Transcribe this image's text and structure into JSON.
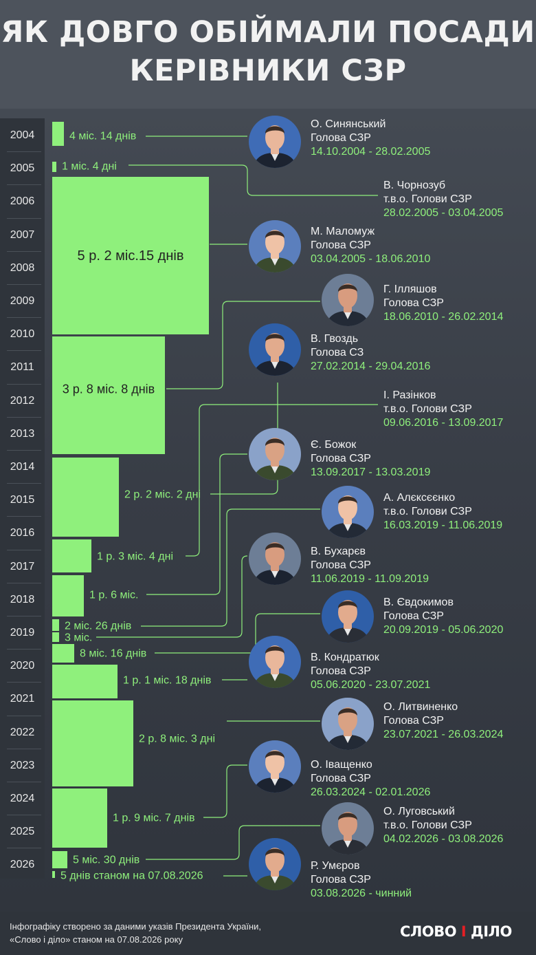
{
  "title": {
    "line1": "ЯК ДОВГО ОБІЙМАЛИ ПОСАДИ",
    "line2": "КЕРІВНИКИ СЗР"
  },
  "years": [
    "2004",
    "2005",
    "2006",
    "2007",
    "2008",
    "2009",
    "2010",
    "2011",
    "2012",
    "2013",
    "2014",
    "2015",
    "2016",
    "2017",
    "2018",
    "2019",
    "2020",
    "2021",
    "2022",
    "2023",
    "2024",
    "2025",
    "2026"
  ],
  "chart_data": {
    "type": "bar",
    "title": "ЯК ДОВГО ОБІЙМАЛИ ПОСАДИ КЕРІВНИКИ СЗР",
    "xlabel": "",
    "ylabel": "",
    "ylim": [
      "2004",
      "2026"
    ],
    "bars": [
      {
        "id": "synianskyi",
        "start": "2004-10-14",
        "end": "2005-02-28",
        "duration_days": 137,
        "label": "4 міс. 14 днів"
      },
      {
        "id": "chornozub",
        "start": "2005-02-28",
        "end": "2005-04-03",
        "duration_days": 34,
        "label": "1 міс. 4 дні"
      },
      {
        "id": "malomuzh",
        "start": "2005-04-03",
        "end": "2010-06-18",
        "duration_days": 1902,
        "label": "5 р. 2 міс.15 днів"
      },
      {
        "id": "illiashov",
        "start": "2010-06-18",
        "end": "2014-02-26",
        "duration_days": 1349,
        "label": "3 р. 8 міс. 8 днів"
      },
      {
        "id": "hvozd",
        "start": "2014-02-27",
        "end": "2016-04-29",
        "duration_days": 792,
        "label": "2 р. 2 міс. 2 дні"
      },
      {
        "id": "razinkov",
        "start": "2016-06-09",
        "end": "2017-09-13",
        "duration_days": 461,
        "label": "1 р. 3 міс. 4 дні"
      },
      {
        "id": "bozhok",
        "start": "2017-09-13",
        "end": "2019-03-13",
        "duration_days": 546,
        "label": "1 р. 6 міс."
      },
      {
        "id": "alieksieienko",
        "start": "2019-03-16",
        "end": "2019-06-11",
        "duration_days": 87,
        "label": "2 міс. 26 днів"
      },
      {
        "id": "bukhariev",
        "start": "2019-06-11",
        "end": "2019-09-11",
        "duration_days": 92,
        "label": "3 міс."
      },
      {
        "id": "yevdokymov",
        "start": "2019-09-20",
        "end": "2020-06-05",
        "duration_days": 259,
        "label": "8 міс. 16 днів"
      },
      {
        "id": "kondratiuk",
        "start": "2020-06-05",
        "end": "2021-07-23",
        "duration_days": 413,
        "label": "1 р. 1 міс. 18 днів"
      },
      {
        "id": "lytvynenko",
        "start": "2021-07-23",
        "end": "2024-03-26",
        "duration_days": 977,
        "label": "2 р. 8 міс. 3 дні"
      },
      {
        "id": "ivashchenko",
        "start": "2024-03-26",
        "end": "2026-01-02",
        "duration_days": 647,
        "label": "1 р. 9 міс. 7 днів"
      },
      {
        "id": "luhovskyi",
        "start": "2026-02-04",
        "end": "2026-08-03",
        "duration_days": 180,
        "label": "5 міс. 30 днів"
      },
      {
        "id": "umierov",
        "start": "2026-08-03",
        "end": "2026-08-07",
        "duration_days": 5,
        "label": "5 днів станом на 07.08.2026"
      }
    ]
  },
  "people": [
    {
      "id": "synianskyi",
      "name": "О. Синянський",
      "role": "Голова СЗР",
      "dates": "14.10.2004 - 28.02.2005",
      "photo": "none"
    },
    {
      "id": "chornozub",
      "name": "В. Чорнозуб",
      "role": "т.в.о. Голови СЗР",
      "dates": "28.02.2005 - 03.04.2005",
      "photo": "none"
    },
    {
      "id": "malomuzh",
      "name": "М. Маломуж",
      "role": "Голова СЗР",
      "dates": "03.04.2005 - 18.06.2010",
      "photo": "none"
    },
    {
      "id": "illiashov",
      "name": "Г. Ілляшов",
      "role": "Голова СЗР",
      "dates": "18.06.2010 - 26.02.2014",
      "photo": "none"
    },
    {
      "id": "hvozd",
      "name": "В. Гвоздь",
      "role": "Голова СЗ",
      "dates": "27.02.2014 - 29.04.2016",
      "photo": "none"
    },
    {
      "id": "razinkov",
      "name": "І. Разінков",
      "role": "т.в.о. Голови СЗР",
      "dates": "09.06.2016 - 13.09.2017",
      "photo": "none"
    },
    {
      "id": "bozhok",
      "name": "Є. Божок",
      "role": "Голова СЗР",
      "dates": "13.09.2017 - 13.03.2019",
      "photo": "none"
    },
    {
      "id": "alieksieienko",
      "name": "А. Алєксєєнко",
      "role": "т.в.о. Голови СЗР",
      "dates": "16.03.2019 - 11.06.2019",
      "photo": "none"
    },
    {
      "id": "bukhariev",
      "name": "В. Бухарєв",
      "role": "Голова СЗР",
      "dates": "11.06.2019 - 11.09.2019",
      "photo": "none"
    },
    {
      "id": "yevdokymov",
      "name": "В. Євдокимов",
      "role": "Голова СЗР",
      "dates": "20.09.2019 - 05.06.2020",
      "photo": "none"
    },
    {
      "id": "kondratiuk",
      "name": "В. Кондратюк",
      "role": "Голова СЗР",
      "dates": "05.06.2020 - 23.07.2021",
      "photo": "none"
    },
    {
      "id": "lytvynenko",
      "name": "О. Литвиненко",
      "role": "Голова СЗР",
      "dates": "23.07.2021 - 26.03.2024",
      "photo": "none"
    },
    {
      "id": "ivashchenko",
      "name": "О. Іващенко",
      "role": "Голова СЗР",
      "dates": "26.03.2024 - 02.01.2026",
      "photo": "none"
    },
    {
      "id": "luhovskyi",
      "name": "О. Луговський",
      "role": "т.в.о. Голови СЗР",
      "dates": "04.02.2026 - 03.08.2026",
      "photo": "none"
    },
    {
      "id": "umierov",
      "name": "Р. Умєров",
      "role": "Голова СЗР",
      "dates": "03.08.2026 - чинний",
      "photo": "none"
    }
  ],
  "footer": {
    "line1": "Інфографіку створено за даними указів Президента України,",
    "line2": "«Слово і діло» станом на 07.08.2026 року",
    "logo": "СЛОВО І ДІЛО"
  },
  "colors": {
    "bar": "#8ff07c",
    "accent": "#8ff07c",
    "background": "#3a4049",
    "brand_red": "#e31e24"
  }
}
